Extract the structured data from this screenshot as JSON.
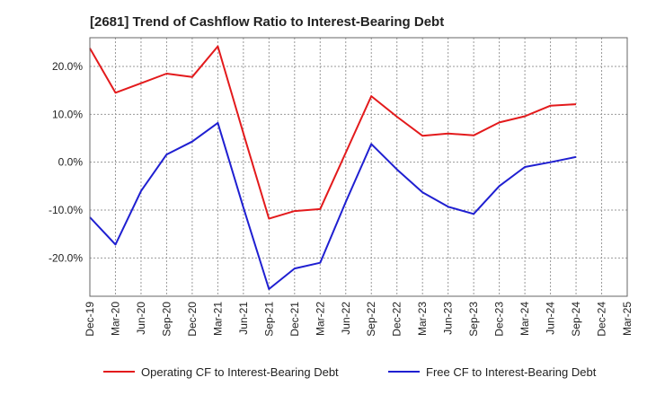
{
  "chart_data": {
    "type": "line",
    "title": "[2681]  Trend of Cashflow Ratio to Interest-Bearing Debt",
    "xlabel": "",
    "ylabel": "",
    "categories": [
      "Dec-19",
      "Mar-20",
      "Jun-20",
      "Sep-20",
      "Dec-20",
      "Mar-21",
      "Jun-21",
      "Sep-21",
      "Dec-21",
      "Mar-22",
      "Jun-22",
      "Sep-22",
      "Dec-22",
      "Mar-23",
      "Jun-23",
      "Sep-23",
      "Dec-23",
      "Mar-24",
      "Jun-24",
      "Sep-24",
      "Dec-24",
      "Mar-25"
    ],
    "yticks": [
      -20,
      -10,
      0,
      10,
      20
    ],
    "ytick_labels": [
      "-20.0%",
      "-10.0%",
      "0.0%",
      "10.0%",
      "20.0%"
    ],
    "ylim": [
      -28,
      26
    ],
    "grid": true,
    "legend_position": "bottom",
    "series": [
      {
        "name": "Operating CF to Interest-Bearing Debt",
        "color": "#e31a1c",
        "values": [
          23.8,
          14.5,
          16.5,
          18.5,
          17.8,
          24.2,
          6.0,
          -11.8,
          -10.2,
          -9.8,
          2.0,
          13.8,
          9.5,
          5.5,
          6.0,
          5.6,
          8.3,
          9.6,
          11.8,
          12.1,
          null,
          null
        ]
      },
      {
        "name": "Free CF to Interest-Bearing Debt",
        "color": "#1f1fd1",
        "values": [
          -11.5,
          -17.2,
          -6.0,
          1.6,
          4.3,
          8.2,
          -9.5,
          -26.5,
          -22.2,
          -21.0,
          -8.3,
          3.8,
          -1.5,
          -6.3,
          -9.3,
          -10.8,
          -5.0,
          -1.0,
          0.0,
          1.1,
          null,
          null
        ]
      }
    ]
  }
}
